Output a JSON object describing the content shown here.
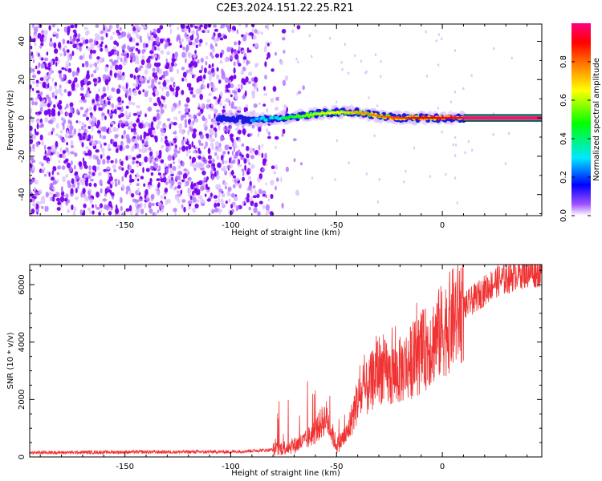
{
  "title": "C2E3.2024.151.22.25.R21",
  "chart_data": [
    {
      "type": "heatmap",
      "xlabel": "Height of straight line (km)",
      "ylabel": "Frequency (Hz)",
      "xlim": [
        -195,
        47
      ],
      "ylim": [
        -51,
        49
      ],
      "xticks": [
        -150,
        -100,
        -50,
        0
      ],
      "yticks": [
        -40,
        -20,
        0,
        20,
        40
      ],
      "colorbar": {
        "label": "Normalized spectral amplitude",
        "range": [
          0,
          1
        ],
        "ticks": [
          0.0,
          0.2,
          0.4,
          0.6,
          0.8
        ],
        "tick_labels": [
          "0.0",
          "0.2",
          "0.4",
          "0.6",
          "0.8"
        ],
        "colormap": [
          "#ffffff",
          "#7a00ff",
          "#0000ff",
          "#00e0ff",
          "#00ff00",
          "#ffff00",
          "#ff8000",
          "#ff0000",
          "#ff0080"
        ]
      },
      "noise_region": {
        "x": [
          -195,
          -85
        ],
        "y": [
          -51,
          49
        ],
        "amplitude": [
          0.05,
          0.15
        ]
      },
      "signal_trace": [
        {
          "x": -130,
          "y": -2,
          "amplitude": 0.2
        },
        {
          "x": -105,
          "y": 0,
          "amplitude": 0.2
        },
        {
          "x": -90,
          "y": -1,
          "amplitude": 0.3
        },
        {
          "x": -80,
          "y": 0,
          "amplitude": 0.35
        },
        {
          "x": -70,
          "y": 0.5,
          "amplitude": 0.5
        },
        {
          "x": -60,
          "y": 2,
          "amplitude": 0.6
        },
        {
          "x": -50,
          "y": 3,
          "amplitude": 0.65
        },
        {
          "x": -40,
          "y": 3,
          "amplitude": 0.75
        },
        {
          "x": -30,
          "y": 1,
          "amplitude": 0.8
        },
        {
          "x": -20,
          "y": 0,
          "amplitude": 0.85
        },
        {
          "x": -10,
          "y": 0,
          "amplitude": 0.9
        },
        {
          "x": 0,
          "y": 0,
          "amplitude": 0.92
        },
        {
          "x": 10,
          "y": 0,
          "amplitude": 0.95
        },
        {
          "x": 47,
          "y": 0,
          "amplitude": 0.97
        }
      ]
    },
    {
      "type": "line",
      "xlabel": "Height of straight line (km)",
      "ylabel": "SNR (10 * v/v)",
      "xlim": [
        -195,
        47
      ],
      "ylim": [
        0,
        6700
      ],
      "xticks": [
        -150,
        -100,
        -50,
        0
      ],
      "yticks": [
        0,
        2000,
        4000,
        6000
      ],
      "color": "#f03232",
      "series": [
        {
          "x": [
            -195,
            -150,
            -100,
            -80,
            -70,
            -65,
            -60,
            -55,
            -50,
            -45,
            -40,
            -35,
            -30,
            -25,
            -20,
            -15,
            -10,
            -5,
            0,
            5,
            10,
            15,
            20,
            25,
            30,
            35,
            40,
            47
          ],
          "values": [
            150,
            170,
            180,
            250,
            400,
            550,
            900,
            1400,
            400,
            800,
            2000,
            2400,
            3100,
            2800,
            3000,
            3300,
            3600,
            4000,
            4400,
            4800,
            5200,
            5500,
            5800,
            6100,
            6200,
            6400,
            6450,
            6500
          ]
        }
      ]
    }
  ]
}
